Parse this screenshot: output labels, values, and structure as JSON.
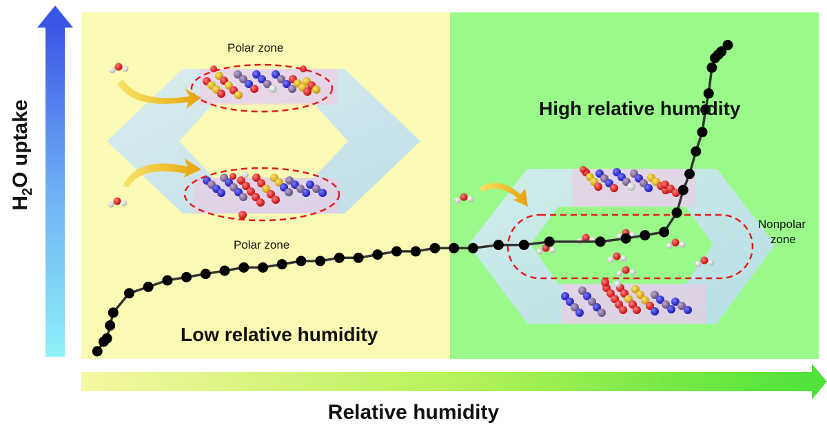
{
  "axes": {
    "y_label": "H2O uptake",
    "x_label": "Relative humidity"
  },
  "regions": {
    "low": {
      "title": "Low relative humidity",
      "color": "#fafab4"
    },
    "high": {
      "title": "High relative humidity",
      "color": "#99fa8a"
    }
  },
  "zones": {
    "polar_top": "Polar zone",
    "polar_bottom": "Polar zone",
    "nonpolar_line1": "Nonpolar",
    "nonpolar_line2": "zone"
  },
  "chart_data": {
    "type": "line",
    "description_free": true,
    "x": [
      0.01,
      0.02,
      0.025,
      0.03,
      0.035,
      0.06,
      0.09,
      0.12,
      0.15,
      0.18,
      0.21,
      0.24,
      0.27,
      0.3,
      0.33,
      0.36,
      0.39,
      0.42,
      0.45,
      0.48,
      0.51,
      0.54,
      0.57,
      0.6,
      0.64,
      0.68,
      0.72,
      0.8,
      0.84,
      0.87,
      0.9,
      0.92,
      0.93,
      0.94,
      0.95,
      0.96,
      0.965,
      0.97,
      0.975,
      0.98,
      0.985,
      0.99,
      1.0
    ],
    "y": [
      0.0,
      0.03,
      0.04,
      0.08,
      0.12,
      0.18,
      0.2,
      0.22,
      0.23,
      0.24,
      0.25,
      0.26,
      0.26,
      0.27,
      0.28,
      0.28,
      0.29,
      0.29,
      0.3,
      0.31,
      0.31,
      0.32,
      0.32,
      0.32,
      0.33,
      0.33,
      0.34,
      0.34,
      0.35,
      0.36,
      0.37,
      0.43,
      0.5,
      0.55,
      0.62,
      0.68,
      0.75,
      0.8,
      0.88,
      0.91,
      0.92,
      0.93,
      0.95
    ],
    "marker_color": "#000000",
    "line_color": "#333333"
  }
}
